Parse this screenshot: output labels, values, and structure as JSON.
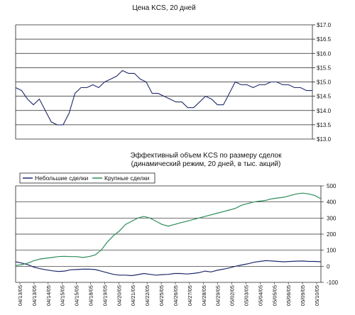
{
  "chart_data": [
    {
      "type": "line",
      "title": "Цена KCS, 20 дней",
      "ylim": [
        13.0,
        17.0
      ],
      "yticks": [
        "$13.0",
        "$13.5",
        "$14.0",
        "$14.5",
        "$15.0",
        "$15.5",
        "$16.0",
        "$16.5",
        "$17.0"
      ],
      "grid": true,
      "series": [
        {
          "color": "#1f2a6b",
          "x": [
            0,
            2,
            4,
            6,
            8,
            10,
            12,
            14,
            16,
            18,
            20,
            22,
            24,
            26,
            28,
            30,
            32,
            34,
            36,
            38,
            40,
            42,
            44,
            46,
            48,
            50,
            52,
            54,
            56,
            58,
            60,
            62,
            64,
            66,
            68,
            70,
            72,
            74,
            76,
            78,
            80,
            82,
            84,
            86,
            88,
            90,
            92,
            94,
            96,
            98,
            100
          ],
          "values": [
            14.8,
            14.7,
            14.4,
            14.2,
            14.4,
            14.0,
            13.6,
            13.5,
            13.5,
            13.9,
            14.6,
            14.8,
            14.8,
            14.9,
            14.8,
            15.0,
            15.1,
            15.2,
            15.4,
            15.3,
            15.3,
            15.1,
            15.0,
            14.6,
            14.6,
            14.5,
            14.4,
            14.3,
            14.3,
            14.1,
            14.1,
            14.3,
            14.5,
            14.4,
            14.2,
            14.2,
            14.6,
            15.0,
            14.9,
            14.9,
            14.8,
            14.9,
            14.9,
            15.0,
            15.0,
            14.9,
            14.9,
            14.8,
            14.8,
            14.7,
            14.7
          ]
        }
      ]
    },
    {
      "type": "line",
      "title": "Эффективный объем KCS по размеру сделок\n(динамический режим, 20 дней, в тыс. акций)",
      "ylim": [
        -100,
        500
      ],
      "yticks": [
        "-100",
        "0",
        "100",
        "200",
        "300",
        "400",
        "500"
      ],
      "grid": true,
      "legend": "top-left",
      "categories": [
        "04/13/05",
        "04/13/05",
        "04/14/05",
        "04/15/05",
        "04/15/05",
        "04/18/05",
        "04/19/05",
        "04/20/05",
        "04/21/05",
        "04/22/05",
        "04/25/05",
        "04/26/05",
        "04/27/05",
        "04/28/05",
        "04/29/05",
        "05/02/05",
        "05/03/05",
        "05/04/05",
        "05/05/05",
        "05/06/05",
        "05/09/05",
        "05/10/05"
      ],
      "series": [
        {
          "name": "Небольшие сделки",
          "color": "#1f2a6b",
          "x": [
            0,
            2,
            4,
            6,
            8,
            10,
            12,
            14,
            16,
            18,
            20,
            22,
            24,
            26,
            28,
            30,
            32,
            34,
            36,
            38,
            40,
            42,
            44,
            46,
            48,
            50,
            52,
            54,
            56,
            58,
            60,
            62,
            64,
            66,
            68,
            70,
            72,
            74,
            76,
            78,
            80,
            82,
            84,
            86,
            88,
            90,
            92,
            94,
            96,
            98,
            100
          ],
          "values": [
            28,
            20,
            10,
            -5,
            -15,
            -22,
            -28,
            -32,
            -30,
            -22,
            -20,
            -18,
            -18,
            -20,
            -30,
            -40,
            -50,
            -55,
            -55,
            -58,
            -52,
            -45,
            -50,
            -55,
            -52,
            -50,
            -45,
            -45,
            -48,
            -45,
            -40,
            -30,
            -35,
            -25,
            -18,
            -10,
            0,
            8,
            15,
            25,
            30,
            35,
            33,
            30,
            28,
            30,
            32,
            33,
            30,
            30,
            28
          ]
        },
        {
          "name": "Крупные сделки",
          "color": "#2e8b57",
          "x": [
            0,
            2,
            4,
            6,
            8,
            10,
            12,
            14,
            16,
            18,
            20,
            22,
            24,
            26,
            28,
            30,
            32,
            34,
            36,
            38,
            40,
            42,
            44,
            46,
            48,
            50,
            52,
            54,
            56,
            58,
            60,
            62,
            64,
            66,
            68,
            70,
            72,
            74,
            76,
            78,
            80,
            82,
            84,
            86,
            88,
            90,
            92,
            94,
            96,
            98,
            100
          ],
          "values": [
            5,
            10,
            20,
            35,
            45,
            50,
            55,
            60,
            62,
            60,
            60,
            55,
            60,
            70,
            100,
            150,
            190,
            220,
            260,
            280,
            300,
            310,
            300,
            280,
            260,
            250,
            260,
            270,
            280,
            290,
            300,
            310,
            320,
            330,
            340,
            350,
            360,
            380,
            390,
            400,
            405,
            410,
            420,
            425,
            430,
            440,
            450,
            455,
            450,
            440,
            420
          ]
        }
      ]
    }
  ]
}
